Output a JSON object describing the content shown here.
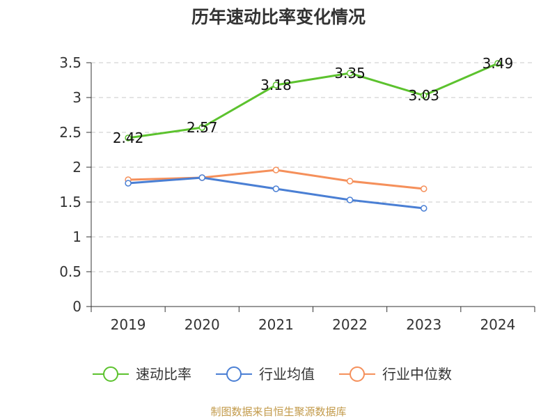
{
  "chart_data": {
    "type": "line",
    "title": "历年速动比率变化情况",
    "categories": [
      "2019",
      "2020",
      "2021",
      "2022",
      "2023",
      "2024"
    ],
    "ylim": [
      0,
      3.5
    ],
    "yticks": [
      "0",
      "0.5",
      "1",
      "1.5",
      "2",
      "2.5",
      "3",
      "3.5"
    ],
    "grid": true,
    "legend_position": "bottom",
    "series": [
      {
        "name": "速动比率",
        "color": "#5cc22e",
        "values": [
          2.42,
          2.57,
          3.18,
          3.35,
          3.03,
          3.49
        ],
        "labels": [
          "2.42",
          "2.57",
          "3.18",
          "3.35",
          "3.03",
          "3.49"
        ],
        "show_labels": true
      },
      {
        "name": "行业均值",
        "color": "#4a7fd4",
        "values": [
          1.77,
          1.85,
          1.69,
          1.53,
          1.41,
          null
        ],
        "show_labels": false
      },
      {
        "name": "行业中位数",
        "color": "#f5905b",
        "values": [
          1.82,
          1.85,
          1.96,
          1.8,
          1.69,
          null
        ],
        "show_labels": false
      }
    ]
  },
  "source_text": "制图数据来自恒生聚源数据库"
}
